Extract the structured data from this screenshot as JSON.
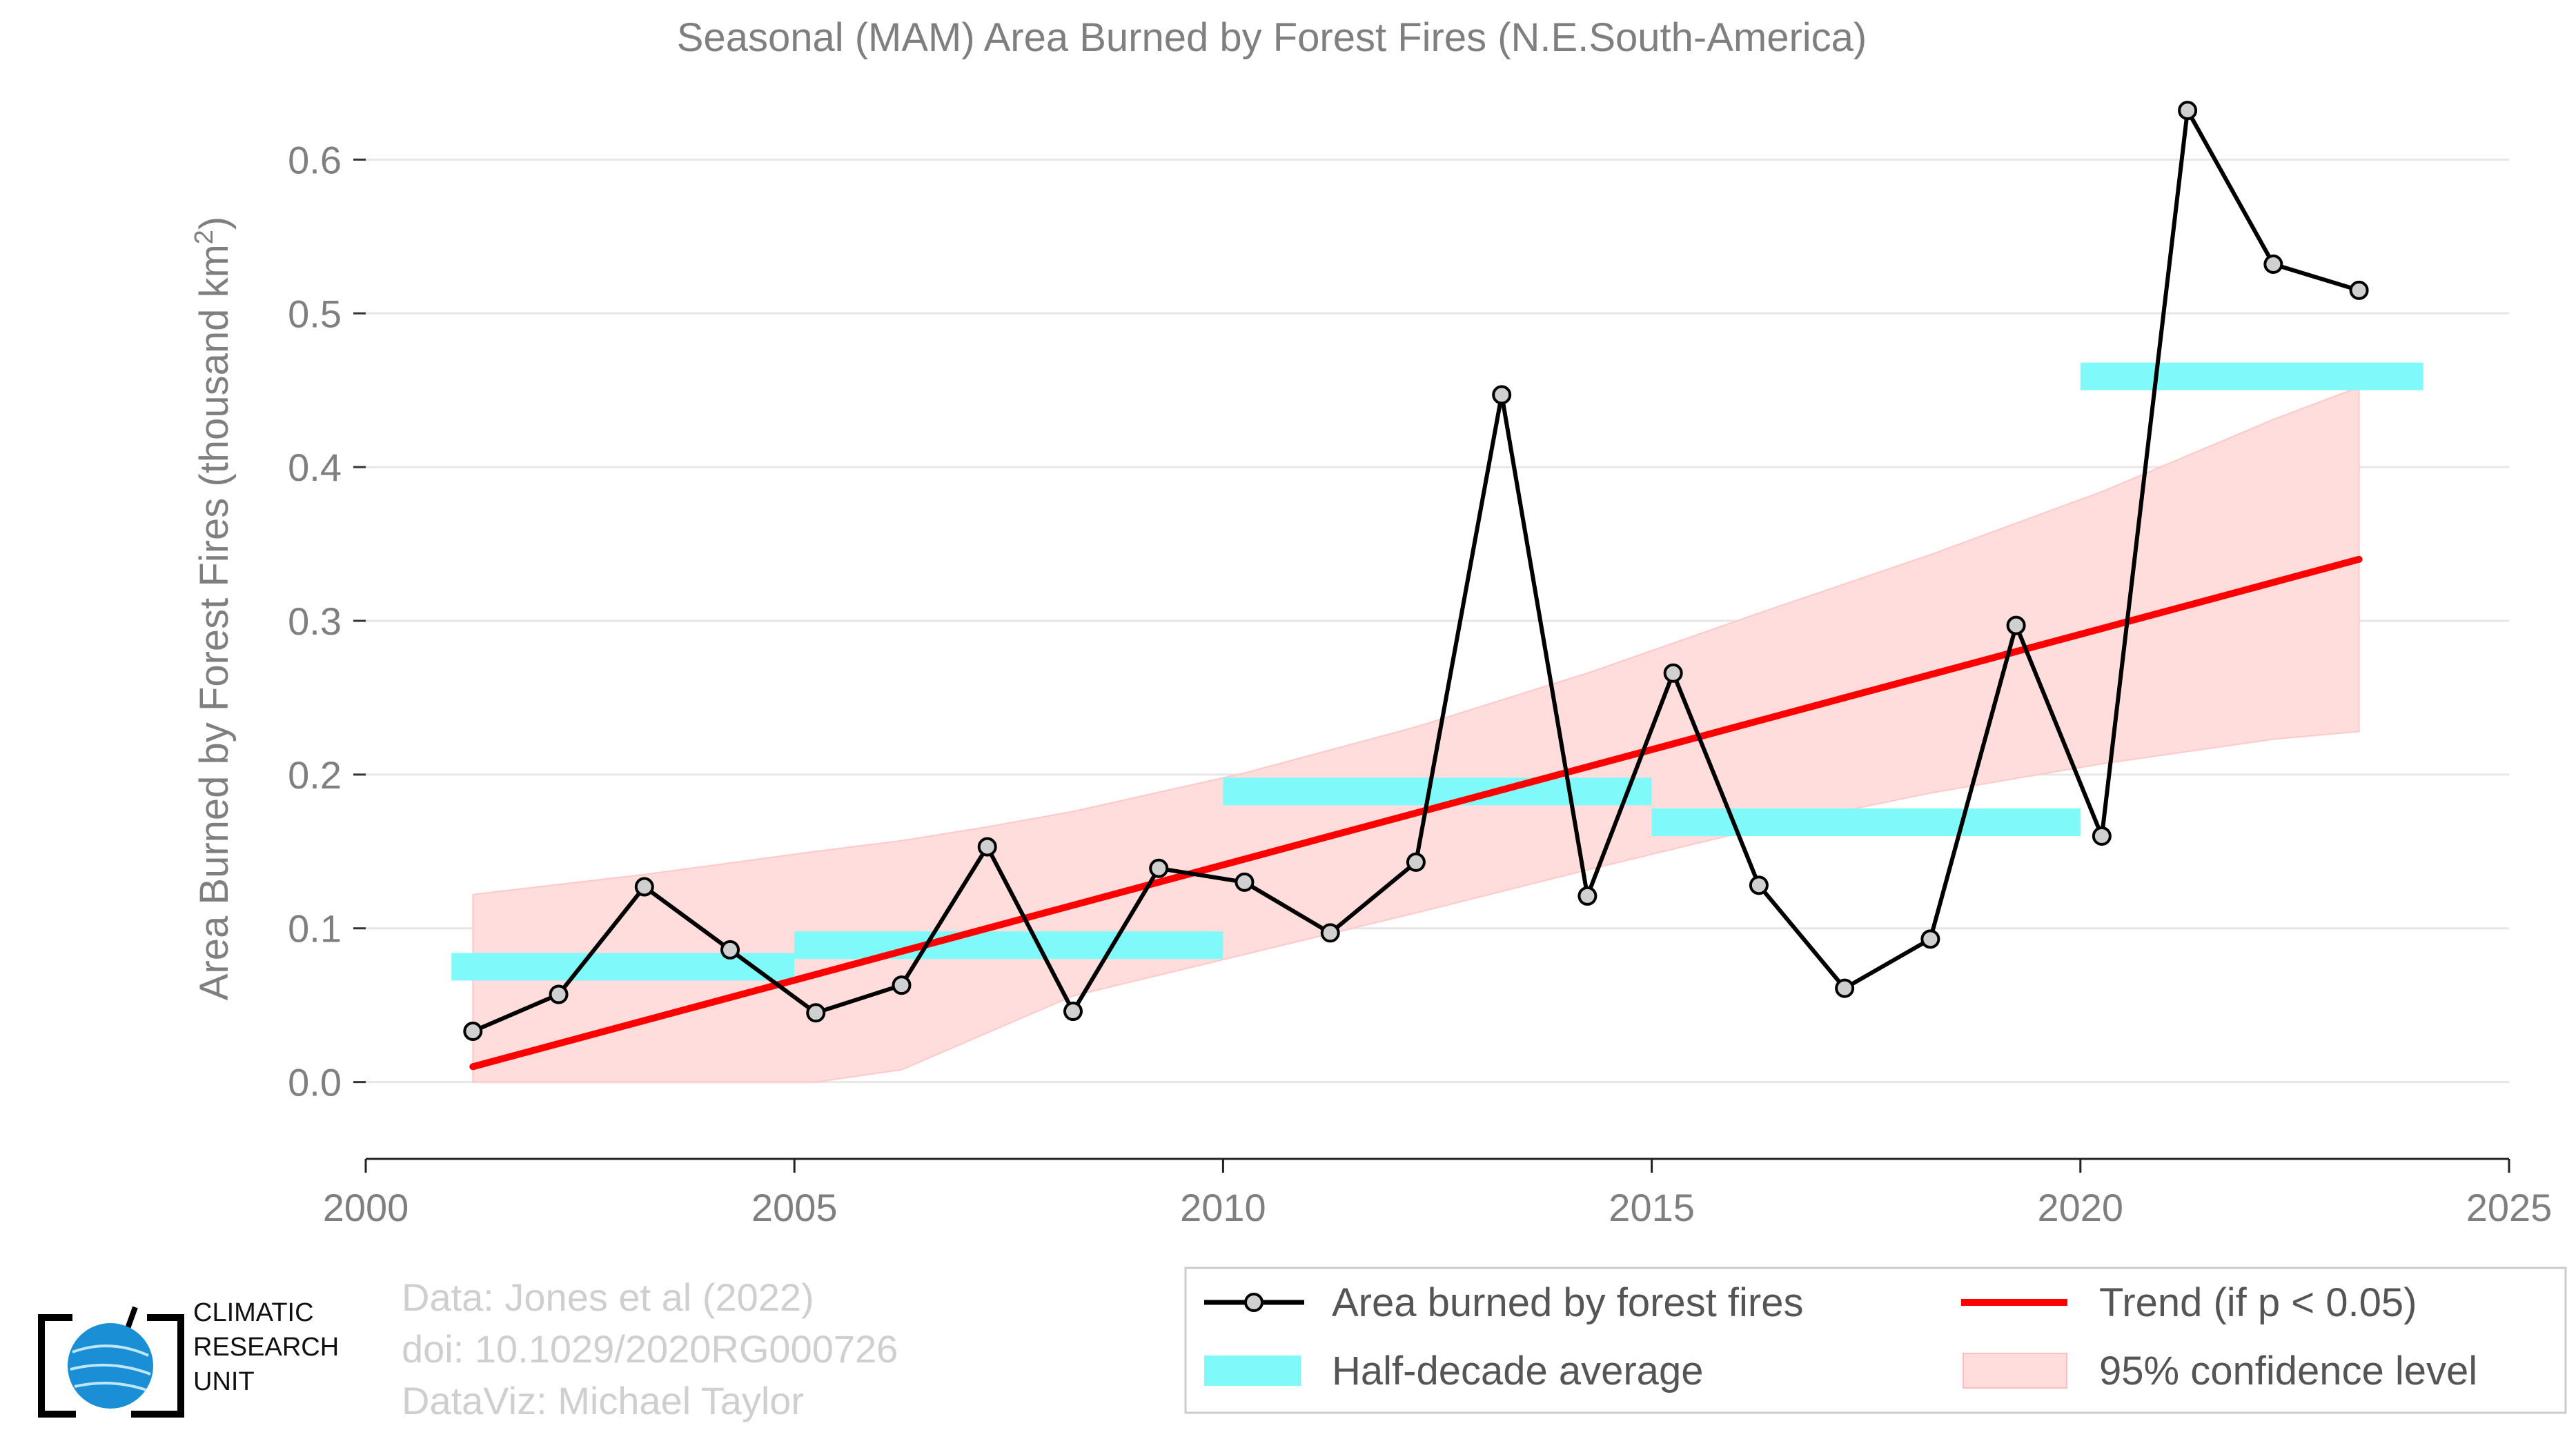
{
  "chart_data": {
    "type": "line",
    "title": "Seasonal (MAM) Area Burned by Forest Fires (N.E.South-America)",
    "ylabel": "Area Burned by Forest Fires (thousand km",
    "ylabel_sup": "2",
    "ylabel_close": ")",
    "xlabel": "",
    "xlim": [
      2000,
      2025
    ],
    "ylim": [
      -0.05,
      0.65
    ],
    "xticks": [
      "2000",
      "2005",
      "2010",
      "2015",
      "2020",
      "2025"
    ],
    "yticks": [
      "0.0",
      "0.1",
      "0.2",
      "0.3",
      "0.4",
      "0.5",
      "0.6"
    ],
    "grid": "horizontal",
    "series": [
      {
        "name": "Area burned by forest fires",
        "color": "#000000",
        "x": [
          2001.25,
          2002.25,
          2003.25,
          2004.25,
          2005.25,
          2006.25,
          2007.25,
          2008.25,
          2009.25,
          2010.25,
          2011.25,
          2012.25,
          2013.25,
          2014.25,
          2015.25,
          2016.25,
          2017.25,
          2018.25,
          2019.25,
          2020.25,
          2021.25,
          2022.25,
          2023.25
        ],
        "y": [
          0.033,
          0.057,
          0.127,
          0.086,
          0.045,
          0.063,
          0.153,
          0.046,
          0.139,
          0.13,
          0.097,
          0.143,
          0.447,
          0.121,
          0.266,
          0.128,
          0.061,
          0.093,
          0.297,
          0.16,
          0.632,
          0.532,
          0.515
        ]
      }
    ],
    "half_decade_average": {
      "name": "Half-decade average",
      "color": "#7ff9f9",
      "segments": [
        {
          "x0": 2001,
          "x1": 2005,
          "y": 0.075
        },
        {
          "x0": 2005,
          "x1": 2010,
          "y": 0.089
        },
        {
          "x0": 2010,
          "x1": 2015,
          "y": 0.189
        },
        {
          "x0": 2015,
          "x1": 2020,
          "y": 0.169
        },
        {
          "x0": 2020,
          "x1": 2024,
          "y": 0.459
        }
      ]
    },
    "trend": {
      "name": "Trend (if p < 0.05)",
      "color": "#ff0000",
      "x": [
        2001.25,
        2023.25
      ],
      "y": [
        0.01,
        0.34
      ]
    },
    "confidence": {
      "name": "95% confidence level",
      "color": "#ffdddd",
      "x": [
        2001.25,
        2003.25,
        2005.25,
        2006.25,
        2007.25,
        2008.25,
        2010.25,
        2012.25,
        2014.25,
        2016.25,
        2018.25,
        2020.25,
        2022.25,
        2023.25
      ],
      "upper": [
        0.122,
        0.135,
        0.15,
        0.157,
        0.166,
        0.176,
        0.201,
        0.231,
        0.266,
        0.305,
        0.343,
        0.384,
        0.431,
        0.452
      ],
      "lower": [
        0.0,
        0.0,
        0.0,
        0.008,
        0.032,
        0.056,
        0.083,
        0.11,
        0.138,
        0.165,
        0.188,
        0.207,
        0.223,
        0.228
      ]
    },
    "legend": "bottom-right"
  },
  "credits": {
    "line1": "Data: Jones et al (2022)",
    "line2": "doi: 10.1029/2020RG000726",
    "line3": "DataViz: Michael Taylor"
  },
  "logo": {
    "line1": "CLIMATIC",
    "line2": "RESEARCH",
    "line3": "UNIT"
  }
}
